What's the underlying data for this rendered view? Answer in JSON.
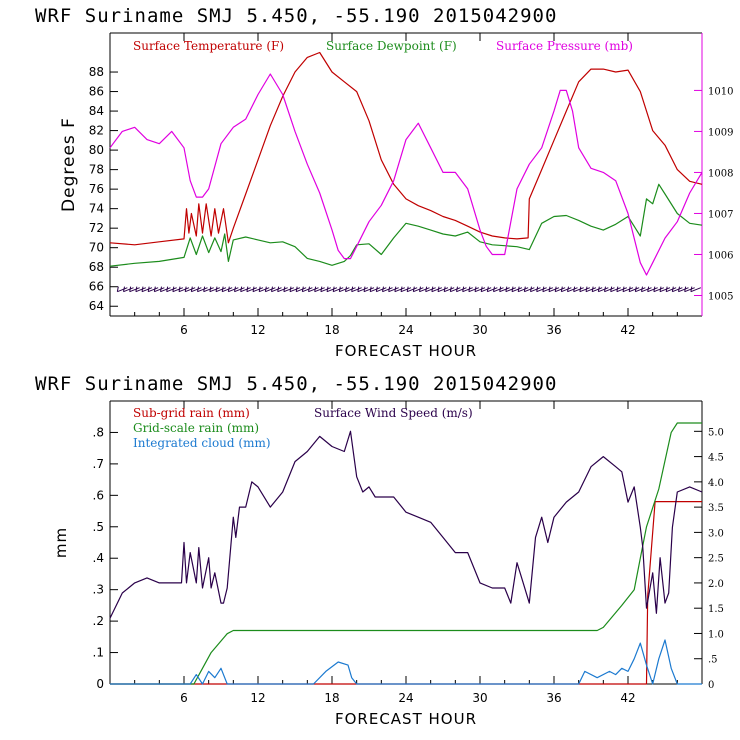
{
  "colors": {
    "temperature": "#c00000",
    "dewpoint": "#1c8c1c",
    "pressure": "#e000e0",
    "wind": "#2a004a",
    "subgrid": "#c00000",
    "gridscale": "#1c8c1c",
    "cloud": "#1c7ad0",
    "axis": "#000000"
  },
  "chart_data": [
    {
      "type": "line",
      "title": "WRF   Suriname SMJ   5.450, -55.190  2015042900",
      "xlabel": "FORECAST HOUR",
      "ylabel": "Degrees F",
      "xlim": [
        0,
        48
      ],
      "ylim": [
        63,
        92
      ],
      "y2lim": [
        1004.5,
        1011.4
      ],
      "xticks": [
        "6",
        "12",
        "18",
        "24",
        "30",
        "36",
        "42"
      ],
      "xtick_values": [
        6,
        12,
        18,
        24,
        30,
        36,
        42
      ],
      "yticks": [
        "64",
        "66",
        "68",
        "70",
        "72",
        "74",
        "76",
        "78",
        "80",
        "82",
        "84",
        "86",
        "88"
      ],
      "ytick_values": [
        64,
        66,
        68,
        70,
        72,
        74,
        76,
        78,
        80,
        82,
        84,
        86,
        88
      ],
      "y2ticks": [
        "1005",
        "1006",
        "1007",
        "1008",
        "1009",
        "1010"
      ],
      "y2tick_values": [
        1005,
        1006,
        1007,
        1008,
        1009,
        1010
      ],
      "legend": [
        "Surface Temperature (F)",
        "Surface Dewpoint (F)",
        "Surface Pressure (mb)"
      ],
      "series": [
        {
          "name": "Surface Temperature (F)",
          "axis": "left",
          "x": [
            0,
            2,
            4,
            6,
            6.2,
            6.4,
            6.6,
            7,
            7.2,
            7.5,
            7.8,
            8.2,
            8.5,
            8.8,
            9.2,
            9.6,
            10,
            11,
            12,
            13,
            14,
            15,
            16,
            17,
            18,
            19,
            20,
            21,
            22,
            23,
            24,
            25,
            26,
            27,
            28,
            29,
            30,
            31,
            32,
            33,
            33.9,
            34,
            35,
            36,
            37,
            38,
            39,
            40,
            41,
            42,
            43,
            44,
            45,
            46,
            47,
            48
          ],
          "y": [
            70.5,
            70.3,
            70.6,
            70.9,
            74,
            71.5,
            73.5,
            71.2,
            74.5,
            71.5,
            74.5,
            71.2,
            74,
            71.5,
            74,
            70.5,
            72,
            75.5,
            79,
            82.5,
            85.5,
            88,
            89.5,
            90,
            88,
            87,
            86,
            83,
            79,
            76.5,
            75,
            74.3,
            73.8,
            73.2,
            72.8,
            72.2,
            71.6,
            71.2,
            71,
            70.9,
            71,
            75,
            78,
            81,
            84,
            87,
            88.3,
            88.3,
            88,
            88.2,
            86,
            82,
            80.5,
            78,
            76.8,
            76.5
          ]
        },
        {
          "name": "Surface Dewpoint (F)",
          "axis": "left",
          "x": [
            0,
            2,
            4,
            6,
            6.5,
            7,
            7.5,
            8,
            8.5,
            9,
            9.3,
            9.6,
            10,
            11,
            12,
            13,
            14,
            15,
            16,
            17,
            18,
            19,
            19.5,
            20,
            21,
            22,
            23,
            24,
            25,
            26,
            27,
            28,
            29,
            30,
            31,
            32,
            33,
            34,
            35,
            36,
            37,
            38,
            39,
            40,
            41,
            42,
            43,
            43.5,
            44,
            44.5,
            45,
            46,
            47,
            48
          ],
          "y": [
            68.1,
            68.4,
            68.6,
            69,
            71,
            69.3,
            71.2,
            69.5,
            71,
            69.6,
            71.4,
            68.6,
            70.8,
            71.1,
            70.8,
            70.5,
            70.6,
            70.1,
            68.9,
            68.6,
            68.2,
            68.6,
            69.2,
            70.3,
            70.4,
            69.3,
            71,
            72.5,
            72.2,
            71.8,
            71.4,
            71.2,
            71.6,
            70.6,
            70.3,
            70.2,
            70.1,
            69.8,
            72.5,
            73.2,
            73.3,
            72.8,
            72.2,
            71.8,
            72.4,
            73.2,
            71.2,
            75,
            74.5,
            76.5,
            75.5,
            73.5,
            72.5,
            72.3
          ]
        },
        {
          "name": "Surface Pressure (mb)",
          "axis": "right",
          "x": [
            0,
            1,
            2,
            3,
            4,
            5,
            6,
            6.5,
            7,
            7.5,
            8,
            9,
            10,
            11,
            12,
            13,
            14,
            15,
            16,
            17,
            18,
            18.5,
            19,
            19.5,
            20,
            21,
            22,
            23,
            24,
            25,
            26,
            27,
            28,
            29,
            30,
            30.5,
            31,
            32,
            33,
            34,
            35,
            36,
            36.5,
            37,
            37.5,
            38,
            39,
            40,
            41,
            42,
            43,
            43.5,
            44,
            45,
            46,
            47,
            48
          ],
          "y": [
            1008.6,
            1009.0,
            1009.1,
            1008.8,
            1008.7,
            1009.0,
            1008.6,
            1007.8,
            1007.4,
            1007.4,
            1007.6,
            1008.7,
            1009.1,
            1009.3,
            1009.9,
            1010.4,
            1009.9,
            1009.0,
            1008.2,
            1007.5,
            1006.6,
            1006.1,
            1005.9,
            1005.9,
            1006.2,
            1006.8,
            1007.2,
            1007.8,
            1008.8,
            1009.2,
            1008.6,
            1008.0,
            1008.0,
            1007.6,
            1006.6,
            1006.2,
            1006.0,
            1006.0,
            1007.6,
            1008.2,
            1008.6,
            1009.5,
            1010.0,
            1010.0,
            1009.5,
            1008.6,
            1008.1,
            1008.0,
            1007.8,
            1007.0,
            1005.8,
            1005.5,
            1005.8,
            1006.4,
            1006.8,
            1007.5,
            1008.0
          ]
        }
      ],
      "wind_barbs": {
        "y": 65.7,
        "label": "wind barbs"
      }
    },
    {
      "type": "line",
      "title": "WRF   Suriname SMJ   5.450, -55.190  2015042900",
      "xlabel": "FORECAST HOUR",
      "ylabel": "mm",
      "xlim": [
        0,
        48
      ],
      "ylim": [
        0,
        0.9
      ],
      "y2lim": [
        0,
        5.6
      ],
      "xticks": [
        "6",
        "12",
        "18",
        "24",
        "30",
        "36",
        "42"
      ],
      "xtick_values": [
        6,
        12,
        18,
        24,
        30,
        36,
        42
      ],
      "yticks": [
        "0",
        ".1",
        ".2",
        ".3",
        ".4",
        ".5",
        ".6",
        ".7",
        ".8"
      ],
      "ytick_values": [
        0,
        0.1,
        0.2,
        0.3,
        0.4,
        0.5,
        0.6,
        0.7,
        0.8
      ],
      "y2ticks": [
        "0",
        ".5",
        "1.0",
        "1.5",
        "2.0",
        "2.5",
        "3.0",
        "3.5",
        "4.0",
        "4.5",
        "5.0"
      ],
      "y2tick_values": [
        0,
        0.5,
        1.0,
        1.5,
        2.0,
        2.5,
        3.0,
        3.5,
        4.0,
        4.5,
        5.0
      ],
      "legend": [
        "Sub-grid rain (mm)",
        "Grid-scale rain (mm)",
        "Integrated cloud (mm)",
        "Surface Wind Speed (m/s)"
      ],
      "series": [
        {
          "name": "Sub-grid rain (mm)",
          "axis": "left",
          "x": [
            0,
            43.5,
            43.6,
            44.2,
            48
          ],
          "y": [
            0,
            0,
            0.28,
            0.58,
            0.58
          ]
        },
        {
          "name": "Grid-scale rain (mm)",
          "axis": "left",
          "x": [
            0,
            6.8,
            7.5,
            8.2,
            9.5,
            10,
            39.5,
            40,
            41.5,
            42.5,
            43,
            43.5,
            44.5,
            45.5,
            46,
            48
          ],
          "y": [
            0,
            0,
            0.05,
            0.1,
            0.16,
            0.17,
            0.17,
            0.18,
            0.25,
            0.3,
            0.4,
            0.5,
            0.62,
            0.8,
            0.83,
            0.83
          ]
        },
        {
          "name": "Integrated cloud (mm)",
          "axis": "left",
          "x": [
            0,
            6.5,
            7,
            7.5,
            8,
            8.5,
            9,
            9.5,
            10,
            16.5,
            17.5,
            18.5,
            19.3,
            19.6,
            20,
            38,
            38.5,
            39.5,
            40.5,
            41,
            41.5,
            42,
            42.5,
            43,
            43.5,
            44,
            44.5,
            45,
            45.5,
            46,
            48
          ],
          "y": [
            0,
            0,
            0.03,
            0,
            0.04,
            0.02,
            0.05,
            0,
            0,
            0,
            0.04,
            0.07,
            0.06,
            0.02,
            0,
            0,
            0.04,
            0.02,
            0.04,
            0.03,
            0.05,
            0.04,
            0.08,
            0.13,
            0.06,
            0,
            0.08,
            0.14,
            0.05,
            0,
            0
          ]
        },
        {
          "name": "Surface Wind Speed (m/s)",
          "axis": "right",
          "x": [
            0,
            1,
            2,
            3,
            4,
            5,
            5.8,
            6,
            6.2,
            6.5,
            7,
            7.2,
            7.5,
            8,
            8.2,
            8.5,
            9,
            9.2,
            9.5,
            10,
            10.2,
            10.5,
            11,
            11.5,
            12,
            13,
            14,
            15,
            16,
            17,
            18,
            19,
            19.5,
            20,
            20.5,
            21,
            21.5,
            22,
            23,
            24,
            25,
            26,
            27,
            28,
            29,
            30,
            31,
            32,
            32.5,
            33,
            33.5,
            34,
            34.5,
            35,
            35.5,
            36,
            37,
            38,
            39,
            40,
            41,
            41.5,
            42,
            42.5,
            43,
            43.2,
            43.5,
            44,
            44.3,
            44.6,
            45,
            45.3,
            45.6,
            46,
            47,
            48
          ],
          "y": [
            1.3,
            1.8,
            2.0,
            2.1,
            2.0,
            2.0,
            2.0,
            2.8,
            2.0,
            2.6,
            2.0,
            2.7,
            1.9,
            2.5,
            1.9,
            2.2,
            1.6,
            1.6,
            1.9,
            3.3,
            2.9,
            3.5,
            3.5,
            4.0,
            3.9,
            3.5,
            3.8,
            4.4,
            4.6,
            4.9,
            4.7,
            4.6,
            5.0,
            4.1,
            3.8,
            3.9,
            3.7,
            3.7,
            3.7,
            3.4,
            3.3,
            3.2,
            2.9,
            2.6,
            2.6,
            2.0,
            1.9,
            1.9,
            1.6,
            2.4,
            2.0,
            1.6,
            2.9,
            3.3,
            2.8,
            3.3,
            3.6,
            3.8,
            4.3,
            4.5,
            4.3,
            4.2,
            3.6,
            3.9,
            3.1,
            2.7,
            1.5,
            2.2,
            1.4,
            2.5,
            1.6,
            1.8,
            3.1,
            3.8,
            3.9,
            3.8
          ]
        }
      ]
    }
  ]
}
